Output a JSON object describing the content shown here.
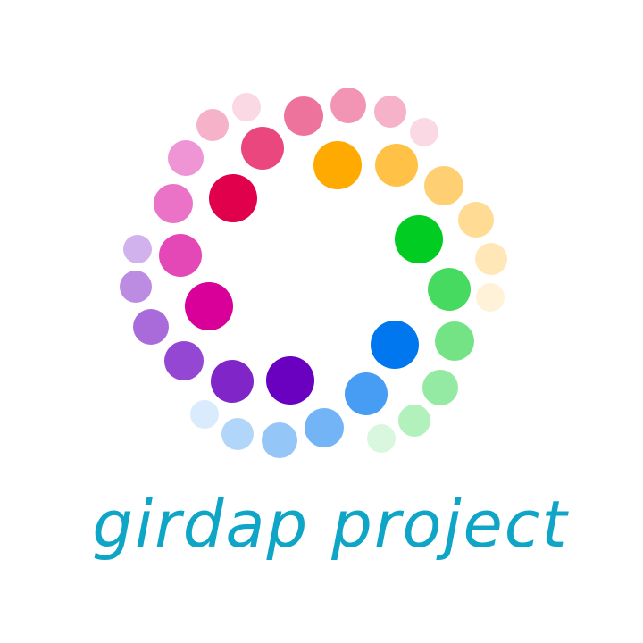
{
  "logo": {
    "wordmark": "girdap project",
    "wordmark_color": "#0ea5c6",
    "mark_name": "swirl-dots-logo",
    "dot_palette": {
      "red": "#e0004b",
      "orange": "#ffaa00",
      "green": "#00cc22",
      "blue": "#0077ee",
      "purple": "#6a00c0",
      "magenta": "#d9009a"
    }
  }
}
